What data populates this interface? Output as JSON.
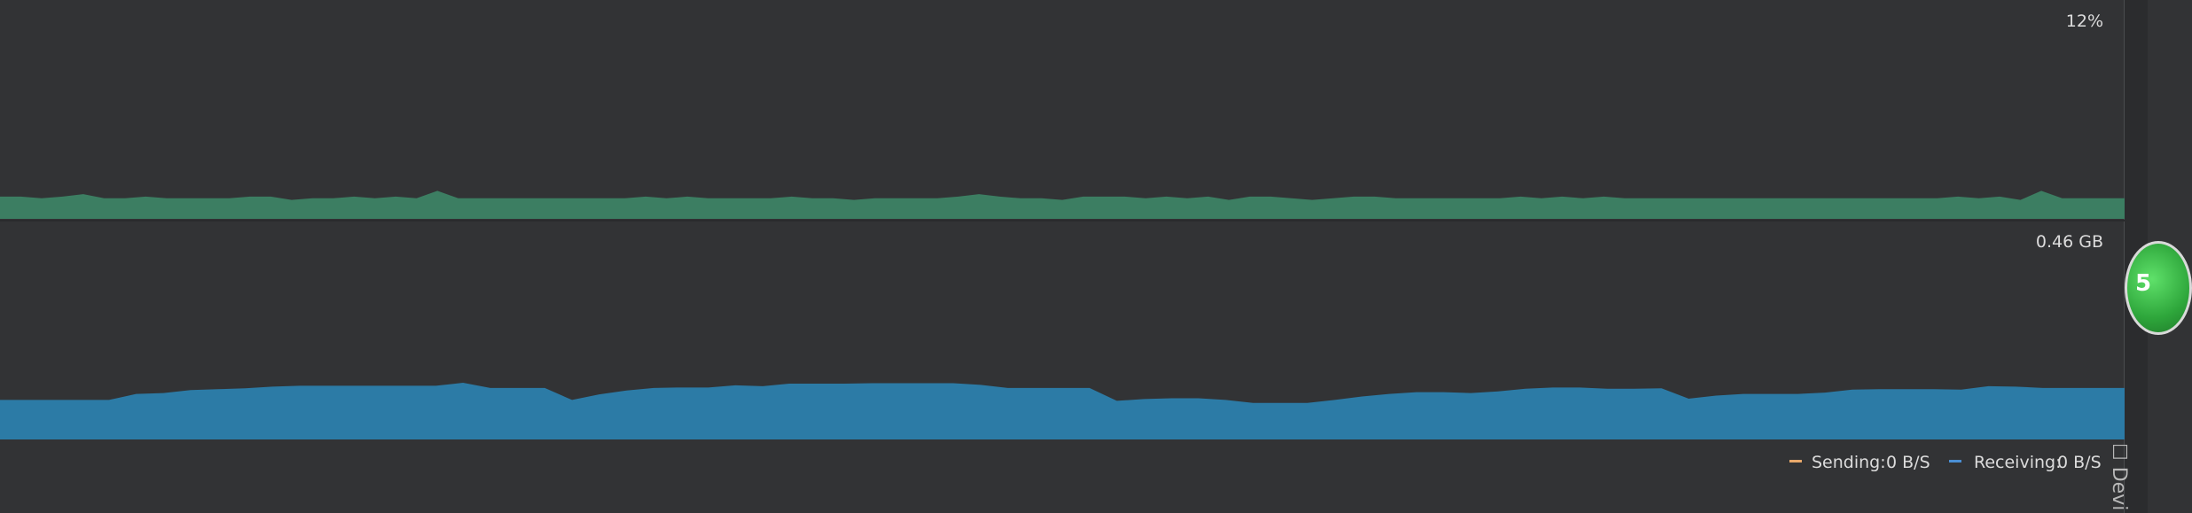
{
  "chart_data": [
    {
      "type": "area",
      "peak_label": "12%",
      "color": "#3c7e62",
      "ylim": [
        0,
        12
      ],
      "values": [
        1.35,
        1.35,
        1.25,
        1.35,
        1.5,
        1.25,
        1.25,
        1.35,
        1.25,
        1.25,
        1.25,
        1.25,
        1.35,
        1.35,
        1.15,
        1.25,
        1.25,
        1.35,
        1.25,
        1.35,
        1.25,
        1.7,
        1.25,
        1.25,
        1.25,
        1.25,
        1.25,
        1.25,
        1.25,
        1.25,
        1.25,
        1.35,
        1.25,
        1.35,
        1.25,
        1.25,
        1.25,
        1.25,
        1.35,
        1.25,
        1.25,
        1.15,
        1.25,
        1.25,
        1.25,
        1.25,
        1.35,
        1.5,
        1.35,
        1.25,
        1.25,
        1.15,
        1.35,
        1.35,
        1.35,
        1.25,
        1.35,
        1.25,
        1.35,
        1.15,
        1.35,
        1.35,
        1.25,
        1.15,
        1.25,
        1.35,
        1.35,
        1.25,
        1.25,
        1.25,
        1.25,
        1.25,
        1.25,
        1.35,
        1.25,
        1.35,
        1.25,
        1.35,
        1.25,
        1.25,
        1.25,
        1.25,
        1.25,
        1.25,
        1.25,
        1.25,
        1.25,
        1.25,
        1.25,
        1.25,
        1.25,
        1.25,
        1.25,
        1.25,
        1.35,
        1.25,
        1.35,
        1.15,
        1.7,
        1.25,
        1.25,
        1.25,
        1.25
      ]
    },
    {
      "type": "area",
      "peak_label": "0.46 GB",
      "color": "#2c7ba6",
      "ylim": [
        0,
        0.46
      ],
      "values": [
        0.092,
        0.092,
        0.092,
        0.092,
        0.092,
        0.106,
        0.108,
        0.115,
        0.117,
        0.119,
        0.123,
        0.125,
        0.125,
        0.125,
        0.125,
        0.125,
        0.125,
        0.132,
        0.12,
        0.12,
        0.12,
        0.092,
        0.105,
        0.114,
        0.12,
        0.121,
        0.121,
        0.126,
        0.124,
        0.13,
        0.13,
        0.13,
        0.131,
        0.131,
        0.131,
        0.131,
        0.127,
        0.12,
        0.12,
        0.12,
        0.12,
        0.09,
        0.094,
        0.096,
        0.096,
        0.092,
        0.085,
        0.085,
        0.085,
        0.092,
        0.1,
        0.106,
        0.11,
        0.11,
        0.108,
        0.112,
        0.118,
        0.121,
        0.121,
        0.118,
        0.118,
        0.119,
        0.095,
        0.102,
        0.106,
        0.106,
        0.106,
        0.109,
        0.116,
        0.117,
        0.117,
        0.117,
        0.116,
        0.124,
        0.123,
        0.12,
        0.12,
        0.12,
        0.12
      ]
    }
  ],
  "legend": {
    "sending": {
      "label": "Sending:",
      "value": "0 B/S",
      "color": "#e8a96b"
    },
    "receiving": {
      "label": "Receiving:",
      "value": "0 B/S",
      "color": "#4a8fd4"
    }
  },
  "side": {
    "badge_text": "5",
    "device_tab": "Devi"
  }
}
